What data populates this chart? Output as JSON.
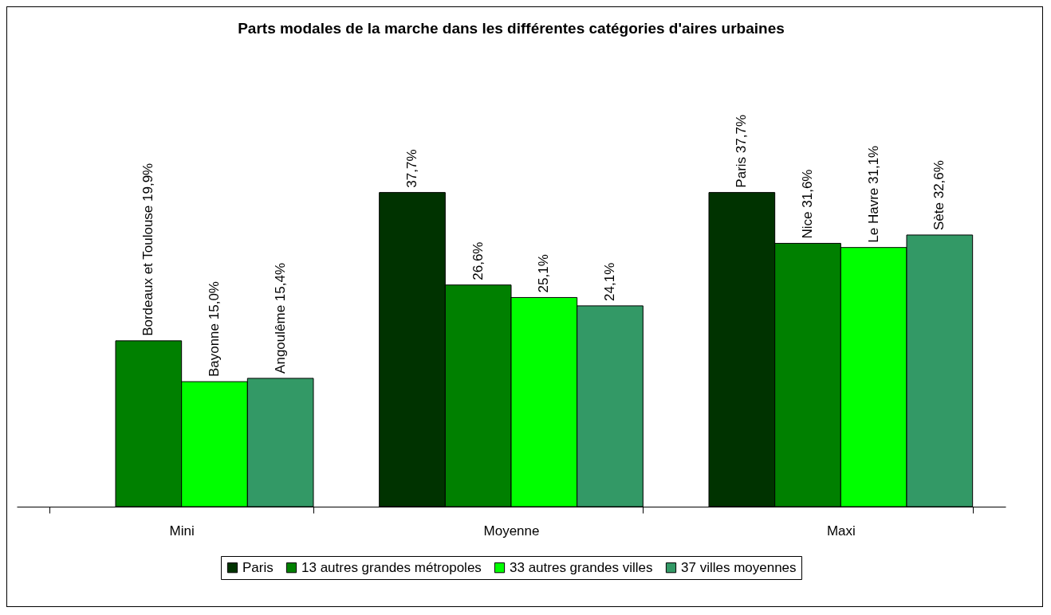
{
  "chart_data": {
    "type": "bar",
    "title": "Parts modales de la marche dans les différentes catégories d'aires urbaines",
    "categories": [
      "Mini",
      "Moyenne",
      "Maxi"
    ],
    "legend": "bottom",
    "series": [
      {
        "name": "Paris",
        "color": "#003300",
        "values": [
          null,
          37.7,
          37.7
        ],
        "value_labels": [
          null,
          "37,7%",
          "Paris 37,7%"
        ]
      },
      {
        "name": "13 autres grandes métropoles",
        "color": "#008000",
        "values": [
          19.9,
          26.6,
          31.6
        ],
        "value_labels": [
          "Bordeaux et Toulouse 19,9%",
          "26,6%",
          "Nice 31,6%"
        ]
      },
      {
        "name": "33 autres grandes villes",
        "color": "#00ff00",
        "values": [
          15.0,
          25.1,
          31.1
        ],
        "value_labels": [
          "Bayonne 15,0%",
          "25,1%",
          "Le Havre 31,1%"
        ]
      },
      {
        "name": "37 villes moyennes",
        "color": "#339966",
        "values": [
          15.4,
          24.1,
          32.6
        ],
        "value_labels": [
          "Angoulême 15,4%",
          "24,1%",
          "Sète 32,6%"
        ]
      }
    ]
  }
}
